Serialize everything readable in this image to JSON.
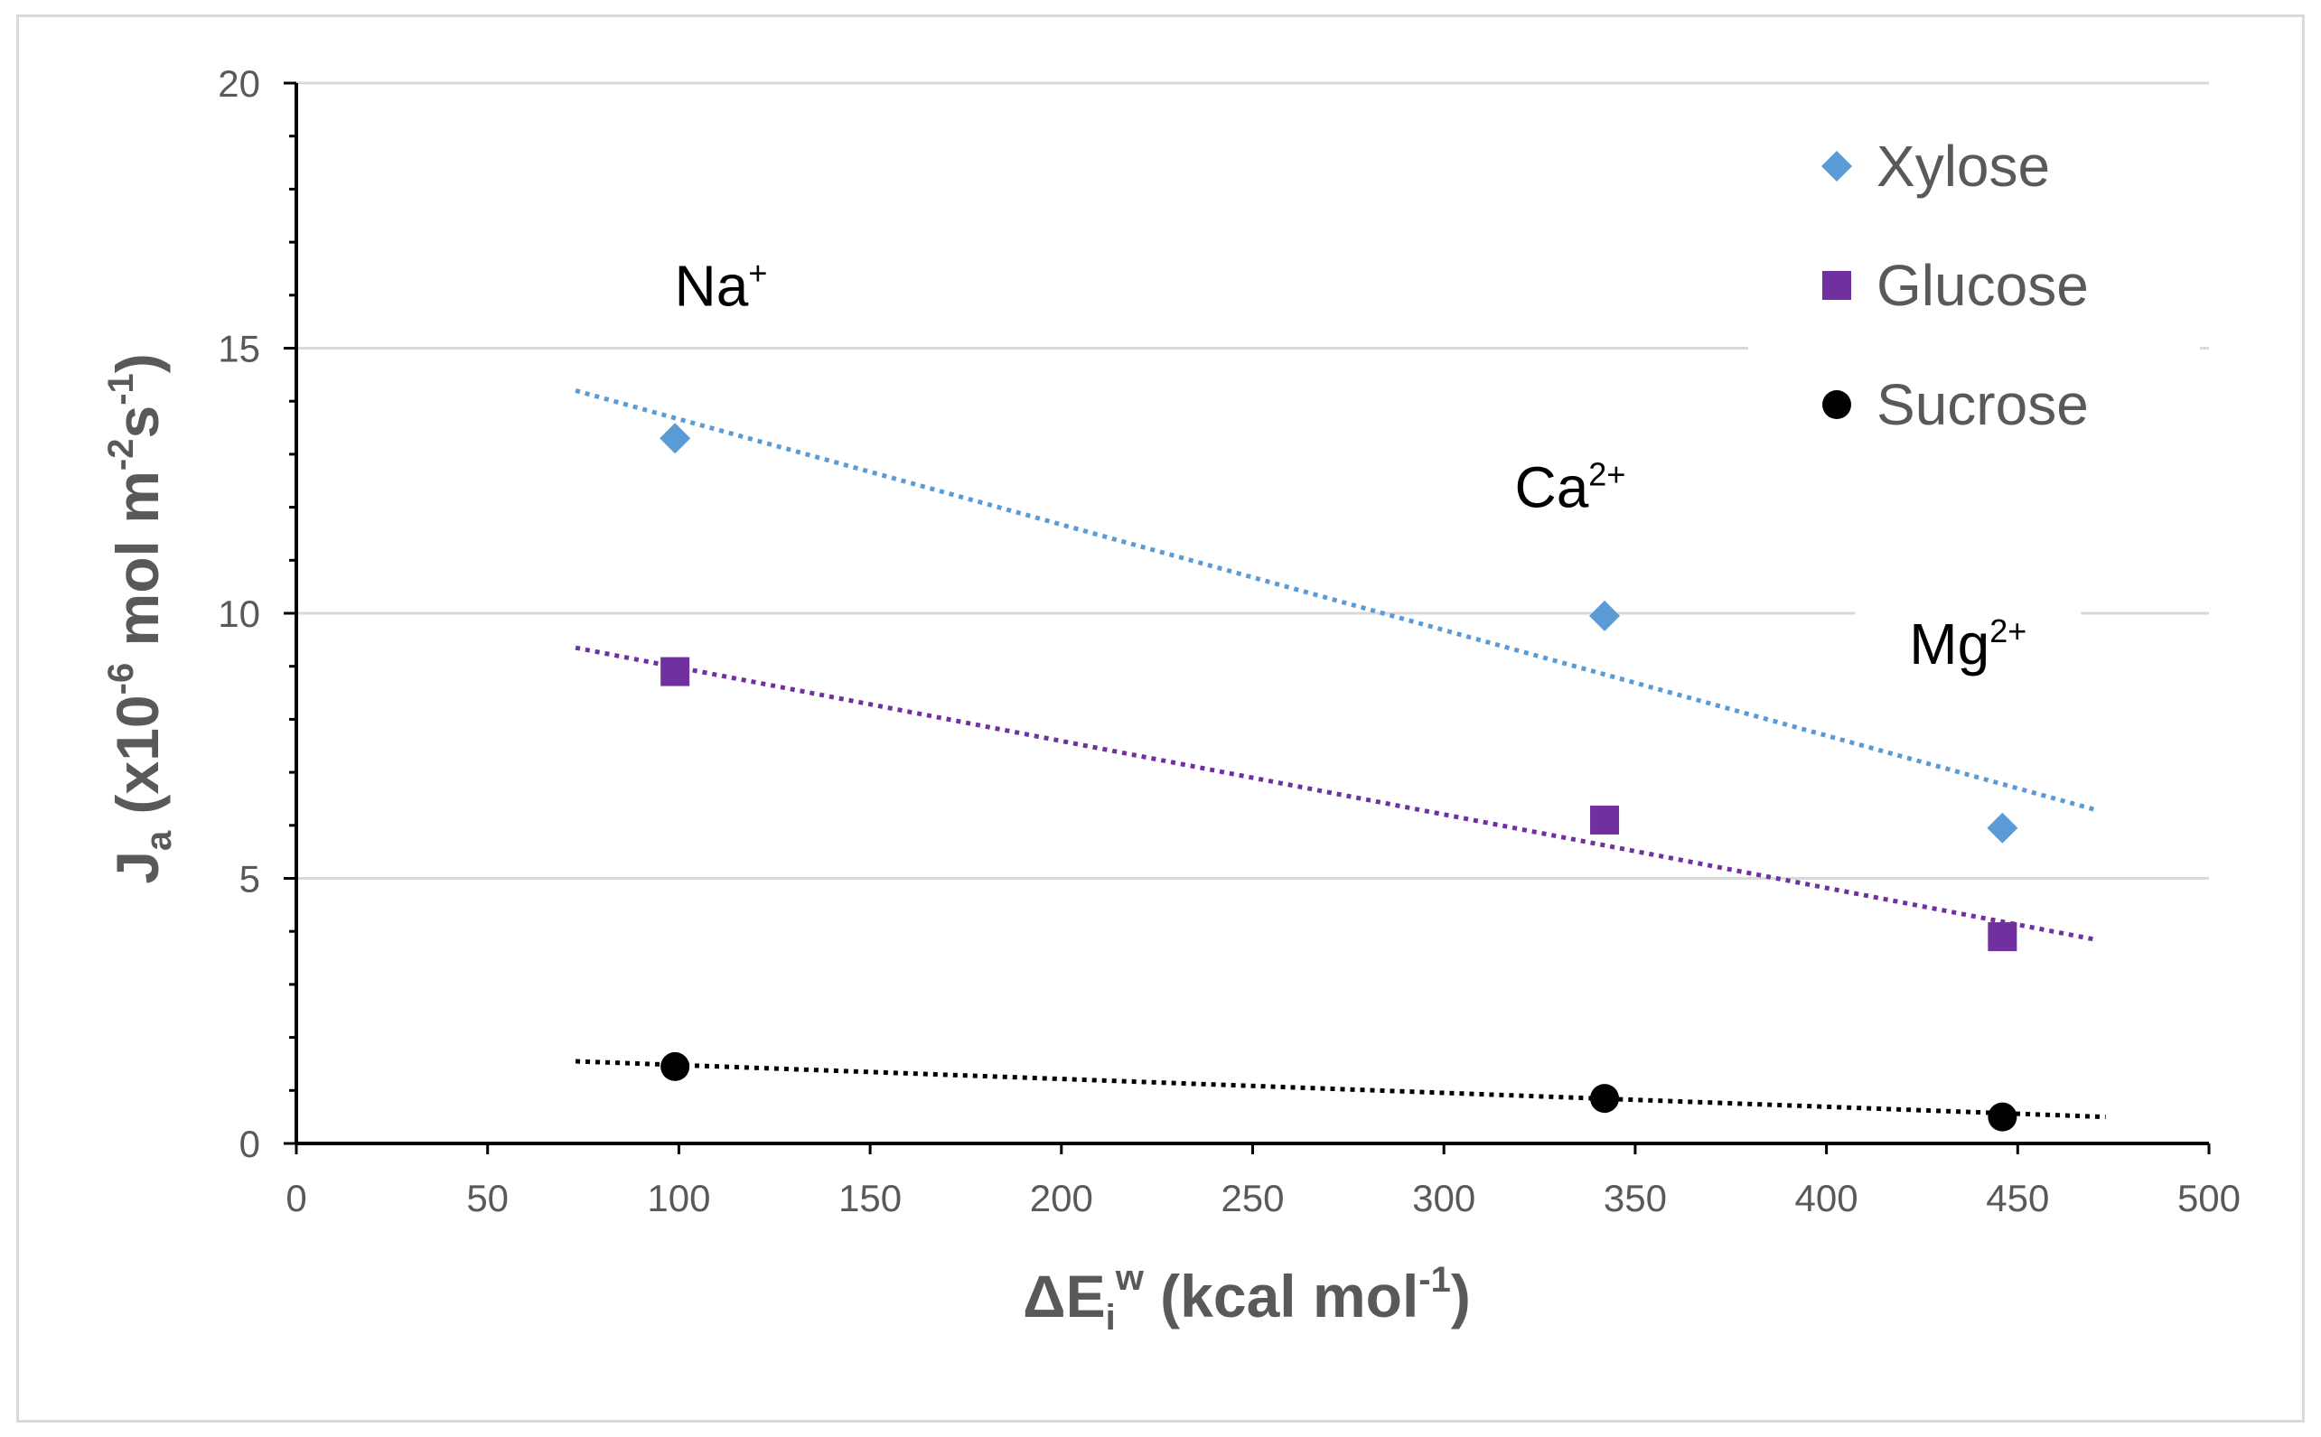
{
  "chart_data": {
    "type": "scatter",
    "x_label": {
      "main": "ΔE",
      "sub": "i",
      "sup": "w",
      "rest": " (kcal mol",
      "rest_sup": "-1",
      "close": ")"
    },
    "y_label": {
      "main": "J",
      "sub": "a",
      "rest1": " (x10",
      "sup1": "-6",
      "rest2": " mol m",
      "sup2": "-2",
      "rest3": "s",
      "sup3": "-1",
      "close": ")"
    },
    "xlim": [
      0,
      500
    ],
    "ylim": [
      0,
      20
    ],
    "x_ticks": [
      0,
      50,
      100,
      150,
      200,
      250,
      300,
      350,
      400,
      450,
      500
    ],
    "y_ticks": [
      0,
      5,
      10,
      15,
      20
    ],
    "gridlines": "horizontal",
    "legend_position": "top-right",
    "series": [
      {
        "name": "Xylose",
        "marker": "diamond",
        "color": "#5b9bd5",
        "x": [
          99,
          342,
          446
        ],
        "y": [
          13.3,
          9.95,
          5.95
        ],
        "trendline": {
          "x": [
            73,
            470
          ],
          "y": [
            14.2,
            6.3
          ]
        }
      },
      {
        "name": "Glucose",
        "marker": "square",
        "color": "#7030a0",
        "x": [
          99,
          342,
          446
        ],
        "y": [
          8.9,
          6.1,
          3.9
        ],
        "trendline": {
          "x": [
            73,
            470
          ],
          "y": [
            9.35,
            3.85
          ]
        }
      },
      {
        "name": "Sucrose",
        "marker": "circle",
        "color": "#000000",
        "x": [
          99,
          342,
          446
        ],
        "y": [
          1.45,
          0.85,
          0.5
        ],
        "trendline": {
          "x": [
            73,
            473
          ],
          "y": [
            1.55,
            0.5
          ]
        }
      }
    ],
    "annotations": [
      {
        "base": "Na",
        "sup": "+",
        "x": 111,
        "y": 15.8
      },
      {
        "base": "Ca",
        "sup": "2+",
        "x": 333,
        "y": 12.0
      },
      {
        "base": "Mg",
        "sup": "2+",
        "x": 437,
        "y": 9.05
      }
    ]
  }
}
